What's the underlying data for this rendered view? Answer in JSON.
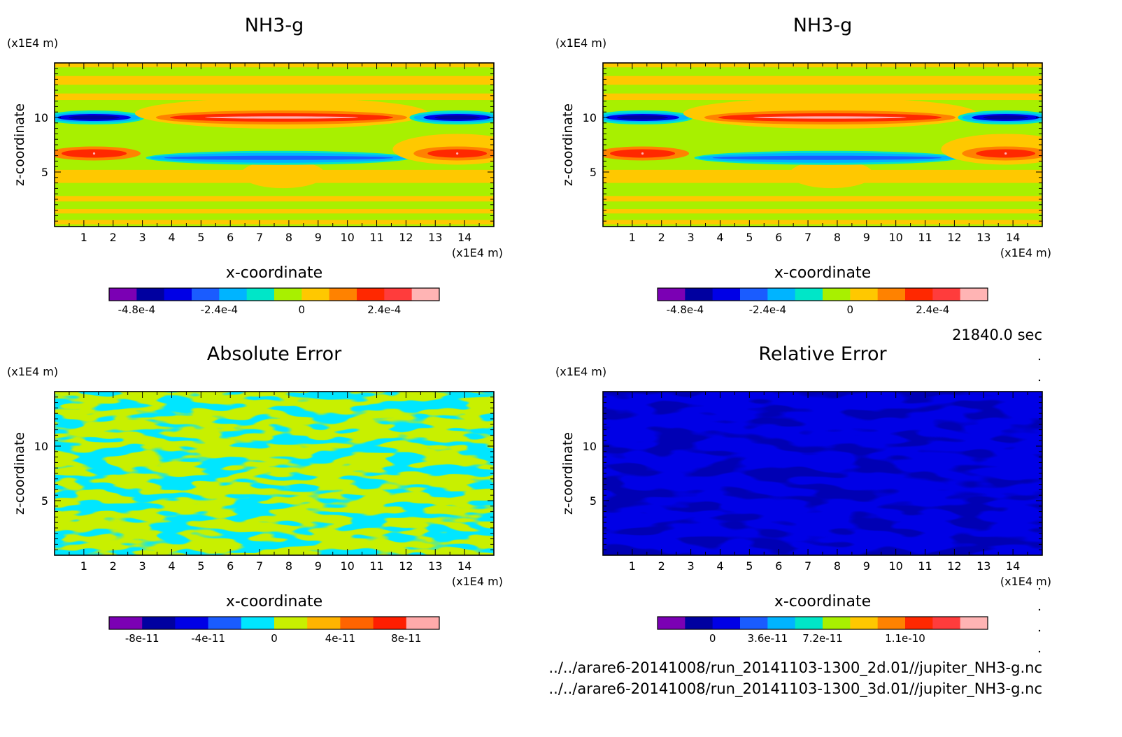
{
  "time_label": "21840.0 sec",
  "files": [
    "../../arare6-20141008/run_20141103-1300_2d.01//jupiter_NH3-g.nc",
    "../../arare6-20141008/run_20141103-1300_3d.01//jupiter_NH3-g.nc"
  ],
  "chart_data": [
    {
      "type": "heatmap",
      "title": "NH3-g",
      "xlabel": "x-coordinate",
      "ylabel": "z-coordinate",
      "x_unit": "(x1E4 m)",
      "z_unit": "(x1E4 m)",
      "xlim": [
        0,
        15
      ],
      "zlim": [
        0,
        15
      ],
      "xticks": [
        "1",
        "2",
        "3",
        "4",
        "5",
        "6",
        "7",
        "8",
        "9",
        "10",
        "11",
        "12",
        "13",
        "14"
      ],
      "zticks": [
        "5",
        "10"
      ],
      "colorbar": {
        "colors": [
          "#7b00b4",
          "#0000a0",
          "#0000e6",
          "#1a5cff",
          "#00b4ff",
          "#00e6c8",
          "#a8f000",
          "#ffc800",
          "#ff8200",
          "#ff2800",
          "#ff3c3c",
          "#ffb4b4"
        ],
        "tick_labels": [
          "-4.8e-4",
          "-2.4e-4",
          "0",
          "2.4e-4"
        ]
      },
      "features": [
        {
          "z": 10.0,
          "x_from": 0,
          "x_to": 2.7,
          "sign": "negative",
          "level": "-4.8e-4"
        },
        {
          "z": 10.0,
          "x_from": 3.7,
          "x_to": 11.8,
          "sign": "positive",
          "level": "2.4e-4"
        },
        {
          "z": 10.0,
          "x_from": 12.5,
          "x_to": 15,
          "sign": "negative",
          "level": "-4.8e-4"
        },
        {
          "z": 6.7,
          "x_from": 0,
          "x_to": 2.7,
          "sign": "positive",
          "level": "2.4e-4"
        },
        {
          "z": 6.3,
          "x_from": 3.5,
          "x_to": 11.8,
          "sign": "negative",
          "level": "-2.4e-4"
        },
        {
          "z": 6.7,
          "x_from": 12.5,
          "x_to": 15,
          "sign": "positive",
          "level": "2.4e-4"
        }
      ]
    },
    {
      "type": "heatmap",
      "title": "NH3-g",
      "xlabel": "x-coordinate",
      "ylabel": "z-coordinate",
      "x_unit": "(x1E4 m)",
      "z_unit": "(x1E4 m)",
      "xlim": [
        0,
        15
      ],
      "zlim": [
        0,
        15
      ],
      "xticks": [
        "1",
        "2",
        "3",
        "4",
        "5",
        "6",
        "7",
        "8",
        "9",
        "10",
        "11",
        "12",
        "13",
        "14"
      ],
      "zticks": [
        "5",
        "10"
      ],
      "colorbar": {
        "colors": [
          "#7b00b4",
          "#0000a0",
          "#0000e6",
          "#1a5cff",
          "#00b4ff",
          "#00e6c8",
          "#a8f000",
          "#ffc800",
          "#ff8200",
          "#ff2800",
          "#ff3c3c",
          "#ffb4b4"
        ],
        "tick_labels": [
          "-4.8e-4",
          "-2.4e-4",
          "0",
          "2.4e-4"
        ]
      },
      "features": [
        {
          "z": 10.0,
          "x_from": 0,
          "x_to": 2.7,
          "sign": "negative",
          "level": "-4.8e-4"
        },
        {
          "z": 10.0,
          "x_from": 3.7,
          "x_to": 11.8,
          "sign": "positive",
          "level": "2.4e-4"
        },
        {
          "z": 10.0,
          "x_from": 12.5,
          "x_to": 15,
          "sign": "negative",
          "level": "-4.8e-4"
        },
        {
          "z": 6.7,
          "x_from": 0,
          "x_to": 2.7,
          "sign": "positive",
          "level": "2.4e-4"
        },
        {
          "z": 6.3,
          "x_from": 3.5,
          "x_to": 11.8,
          "sign": "negative",
          "level": "-2.4e-4"
        },
        {
          "z": 6.7,
          "x_from": 12.5,
          "x_to": 15,
          "sign": "positive",
          "level": "2.4e-4"
        }
      ]
    },
    {
      "type": "heatmap",
      "title": "Absolute Error",
      "xlabel": "x-coordinate",
      "ylabel": "z-coordinate",
      "x_unit": "(x1E4 m)",
      "z_unit": "(x1E4 m)",
      "xlim": [
        0,
        15
      ],
      "zlim": [
        0,
        15
      ],
      "xticks": [
        "1",
        "2",
        "3",
        "4",
        "5",
        "6",
        "7",
        "8",
        "9",
        "10",
        "11",
        "12",
        "13",
        "14"
      ],
      "zticks": [
        "5",
        "10"
      ],
      "colorbar": {
        "colors": [
          "#7b00b4",
          "#0000a0",
          "#0000e6",
          "#1a5cff",
          "#00e6ff",
          "#c8f000",
          "#ffb400",
          "#ff6400",
          "#ff1e00",
          "#ffaaaa"
        ],
        "tick_labels": [
          "-8e-11",
          "-4e-11",
          "0",
          "4e-11",
          "8e-11"
        ]
      },
      "field": "noise pattern of values in [0, 4e-11]"
    },
    {
      "type": "heatmap",
      "title": "Relative Error",
      "xlabel": "x-coordinate",
      "ylabel": "z-coordinate",
      "x_unit": "(x1E4 m)",
      "z_unit": "(x1E4 m)",
      "xlim": [
        0,
        15
      ],
      "zlim": [
        0,
        15
      ],
      "xticks": [
        "1",
        "2",
        "3",
        "4",
        "5",
        "6",
        "7",
        "8",
        "9",
        "10",
        "11",
        "12",
        "13",
        "14"
      ],
      "zticks": [
        "5",
        "10"
      ],
      "colorbar": {
        "colors": [
          "#7b00b4",
          "#0000a0",
          "#0000e6",
          "#1a5cff",
          "#00b4ff",
          "#00e6c8",
          "#a8f000",
          "#ffc800",
          "#ff8200",
          "#ff2800",
          "#ff3c3c",
          "#ffb4b4"
        ],
        "tick_labels": [
          "0",
          "3.6e-11",
          "7.2e-11",
          "1.1e-10"
        ]
      },
      "field": "noise pattern of values near 0 to 1.2e-11"
    }
  ]
}
